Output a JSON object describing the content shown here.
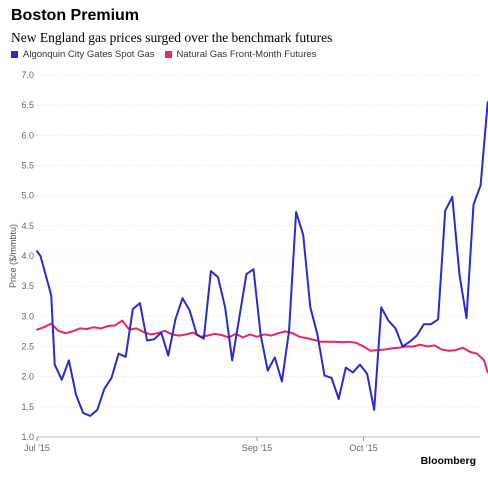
{
  "header": {
    "title": "Boston Premium",
    "subtitle": "New England gas prices surged over the benchmark futures"
  },
  "legend": [
    {
      "label": "Algonquin City Gates Spot Gas",
      "color": "#2b2bc7"
    },
    {
      "label": "Natural Gas Front-Month Futures",
      "color": "#e8265f"
    }
  ],
  "footer": {
    "brand": "Bloomberg"
  },
  "chart_data": {
    "type": "line",
    "ylabel": "Price ($/mmbtu)",
    "ylim": [
      1.0,
      7.0
    ],
    "yticks": [
      "1.0",
      "1.5",
      "2.0",
      "2.5",
      "3.0",
      "3.5",
      "4.0",
      "4.5",
      "5.0",
      "5.5",
      "6.0",
      "6.5",
      "7.0"
    ],
    "xlim": [
      "2015-07-01",
      "2015-10-31"
    ],
    "xticks": [
      {
        "label": "Jul '15",
        "date": "2015-07-01"
      },
      {
        "label": "Sep '15",
        "date": "2015-09-01"
      },
      {
        "label": "Oct '15",
        "date": "2015-10-01"
      }
    ],
    "grid": true,
    "legend_position": "top-left",
    "series": [
      {
        "name": "Algonquin City Gates Spot Gas",
        "color": "#2b2bc7",
        "points": [
          [
            "2015-07-01",
            4.08
          ],
          [
            "2015-07-02",
            4.0
          ],
          [
            "2015-07-05",
            3.35
          ],
          [
            "2015-07-06",
            2.2
          ],
          [
            "2015-07-08",
            1.95
          ],
          [
            "2015-07-10",
            2.27
          ],
          [
            "2015-07-12",
            1.7
          ],
          [
            "2015-07-14",
            1.4
          ],
          [
            "2015-07-16",
            1.35
          ],
          [
            "2015-07-18",
            1.45
          ],
          [
            "2015-07-20",
            1.8
          ],
          [
            "2015-07-22",
            1.98
          ],
          [
            "2015-07-24",
            2.38
          ],
          [
            "2015-07-26",
            2.33
          ],
          [
            "2015-07-28",
            3.12
          ],
          [
            "2015-07-30",
            3.22
          ],
          [
            "2015-08-01",
            2.6
          ],
          [
            "2015-08-03",
            2.62
          ],
          [
            "2015-08-05",
            2.73
          ],
          [
            "2015-08-07",
            2.35
          ],
          [
            "2015-08-09",
            2.95
          ],
          [
            "2015-08-11",
            3.3
          ],
          [
            "2015-08-13",
            3.1
          ],
          [
            "2015-08-15",
            2.7
          ],
          [
            "2015-08-17",
            2.63
          ],
          [
            "2015-08-19",
            3.75
          ],
          [
            "2015-08-21",
            3.65
          ],
          [
            "2015-08-23",
            3.15
          ],
          [
            "2015-08-25",
            2.27
          ],
          [
            "2015-08-27",
            2.98
          ],
          [
            "2015-08-29",
            3.7
          ],
          [
            "2015-08-31",
            3.78
          ],
          [
            "2015-09-02",
            2.7
          ],
          [
            "2015-09-04",
            2.1
          ],
          [
            "2015-09-06",
            2.32
          ],
          [
            "2015-09-08",
            1.92
          ],
          [
            "2015-09-10",
            2.75
          ],
          [
            "2015-09-12",
            4.73
          ],
          [
            "2015-09-14",
            4.35
          ],
          [
            "2015-09-16",
            3.15
          ],
          [
            "2015-09-18",
            2.7
          ],
          [
            "2015-09-20",
            2.02
          ],
          [
            "2015-09-22",
            1.98
          ],
          [
            "2015-09-24",
            1.63
          ],
          [
            "2015-09-26",
            2.15
          ],
          [
            "2015-09-28",
            2.07
          ],
          [
            "2015-09-30",
            2.2
          ],
          [
            "2015-10-02",
            2.05
          ],
          [
            "2015-10-04",
            1.45
          ],
          [
            "2015-10-06",
            3.15
          ],
          [
            "2015-10-08",
            2.93
          ],
          [
            "2015-10-10",
            2.8
          ],
          [
            "2015-10-12",
            2.5
          ],
          [
            "2015-10-14",
            2.58
          ],
          [
            "2015-10-16",
            2.68
          ],
          [
            "2015-10-18",
            2.87
          ],
          [
            "2015-10-20",
            2.87
          ],
          [
            "2015-10-22",
            2.95
          ],
          [
            "2015-10-24",
            4.75
          ],
          [
            "2015-10-26",
            4.98
          ],
          [
            "2015-10-28",
            3.7
          ],
          [
            "2015-10-30",
            2.97
          ],
          [
            "2015-11-01",
            4.85
          ],
          [
            "2015-11-03",
            5.17
          ],
          [
            "2015-11-05",
            6.55
          ],
          [
            "2015-11-07",
            5.5
          ]
        ]
      },
      {
        "name": "Natural Gas Front-Month Futures",
        "color": "#e8265f",
        "points": [
          [
            "2015-07-01",
            2.78
          ],
          [
            "2015-07-03",
            2.82
          ],
          [
            "2015-07-05",
            2.88
          ],
          [
            "2015-07-07",
            2.76
          ],
          [
            "2015-07-09",
            2.72
          ],
          [
            "2015-07-11",
            2.75
          ],
          [
            "2015-07-13",
            2.8
          ],
          [
            "2015-07-15",
            2.79
          ],
          [
            "2015-07-17",
            2.82
          ],
          [
            "2015-07-19",
            2.8
          ],
          [
            "2015-07-21",
            2.84
          ],
          [
            "2015-07-23",
            2.85
          ],
          [
            "2015-07-25",
            2.93
          ],
          [
            "2015-07-27",
            2.78
          ],
          [
            "2015-07-29",
            2.8
          ],
          [
            "2015-07-31",
            2.74
          ],
          [
            "2015-08-02",
            2.7
          ],
          [
            "2015-08-04",
            2.72
          ],
          [
            "2015-08-06",
            2.76
          ],
          [
            "2015-08-08",
            2.7
          ],
          [
            "2015-08-10",
            2.68
          ],
          [
            "2015-08-12",
            2.7
          ],
          [
            "2015-08-14",
            2.73
          ],
          [
            "2015-08-16",
            2.66
          ],
          [
            "2015-08-18",
            2.68
          ],
          [
            "2015-08-20",
            2.71
          ],
          [
            "2015-08-22",
            2.69
          ],
          [
            "2015-08-24",
            2.65
          ],
          [
            "2015-08-26",
            2.71
          ],
          [
            "2015-08-28",
            2.65
          ],
          [
            "2015-08-30",
            2.7
          ],
          [
            "2015-09-01",
            2.66
          ],
          [
            "2015-09-03",
            2.7
          ],
          [
            "2015-09-05",
            2.68
          ],
          [
            "2015-09-07",
            2.72
          ],
          [
            "2015-09-09",
            2.75
          ],
          [
            "2015-09-11",
            2.72
          ],
          [
            "2015-09-13",
            2.66
          ],
          [
            "2015-09-15",
            2.64
          ],
          [
            "2015-09-17",
            2.61
          ],
          [
            "2015-09-19",
            2.58
          ],
          [
            "2015-09-21",
            2.58
          ],
          [
            "2015-09-23",
            2.58
          ],
          [
            "2015-09-25",
            2.57
          ],
          [
            "2015-09-27",
            2.58
          ],
          [
            "2015-09-29",
            2.56
          ],
          [
            "2015-10-01",
            2.5
          ],
          [
            "2015-10-03",
            2.43
          ],
          [
            "2015-10-05",
            2.44
          ],
          [
            "2015-10-07",
            2.45
          ],
          [
            "2015-10-09",
            2.47
          ],
          [
            "2015-10-11",
            2.48
          ],
          [
            "2015-10-13",
            2.5
          ],
          [
            "2015-10-15",
            2.5
          ],
          [
            "2015-10-17",
            2.53
          ],
          [
            "2015-10-19",
            2.5
          ],
          [
            "2015-10-21",
            2.52
          ],
          [
            "2015-10-23",
            2.45
          ],
          [
            "2015-10-25",
            2.43
          ],
          [
            "2015-10-27",
            2.44
          ],
          [
            "2015-10-29",
            2.48
          ],
          [
            "2015-10-31",
            2.41
          ],
          [
            "2015-11-02",
            2.38
          ],
          [
            "2015-11-04",
            2.27
          ],
          [
            "2015-11-05",
            2.07
          ],
          [
            "2015-11-07",
            2.1
          ]
        ]
      }
    ]
  }
}
